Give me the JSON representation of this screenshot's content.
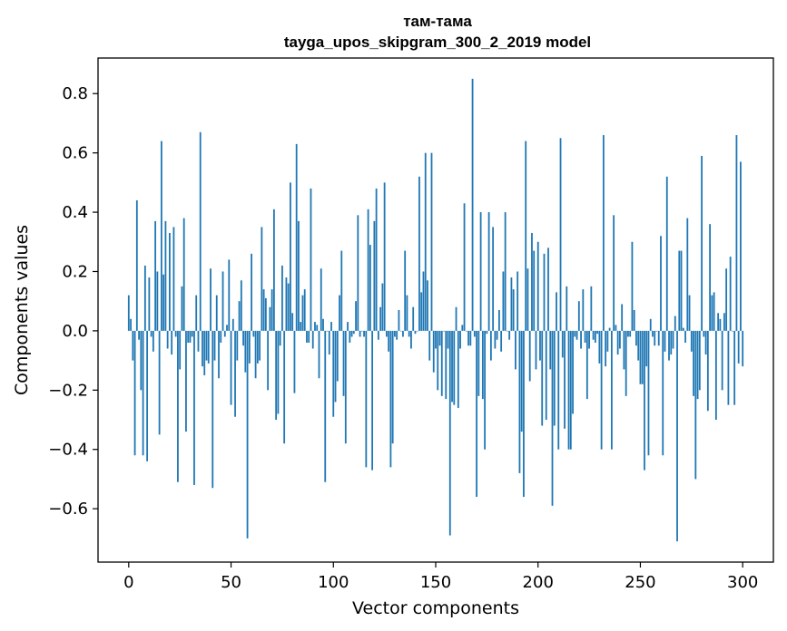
{
  "chart_data": {
    "type": "bar",
    "title_line1": "там-тама",
    "title_line2": "tayga_upos_skipgram_300_2_2019 model",
    "xlabel": "Vector components",
    "ylabel": "Components values",
    "xlim": [
      -15,
      315
    ],
    "ylim": [
      -0.78,
      0.92
    ],
    "x_ticks": [
      0,
      50,
      100,
      150,
      200,
      250,
      300
    ],
    "x_tick_labels": [
      "0",
      "50",
      "100",
      "150",
      "200",
      "250",
      "300"
    ],
    "y_ticks": [
      -0.6,
      -0.4,
      -0.2,
      0.0,
      0.2,
      0.4,
      0.6,
      0.8
    ],
    "y_tick_labels": [
      "−0.6",
      "−0.4",
      "−0.2",
      "0.0",
      "0.2",
      "0.4",
      "0.6",
      "0.8"
    ],
    "bar_color": "#1f77b4",
    "values": [
      0.12,
      0.04,
      -0.1,
      -0.42,
      0.44,
      -0.03,
      -0.2,
      -0.42,
      0.22,
      -0.44,
      0.18,
      -0.02,
      -0.07,
      0.37,
      0.2,
      -0.35,
      0.64,
      0.19,
      0.37,
      -0.06,
      0.33,
      -0.08,
      0.35,
      -0.02,
      -0.51,
      -0.13,
      0.15,
      0.38,
      -0.34,
      -0.04,
      -0.04,
      -0.02,
      -0.52,
      0.12,
      -0.07,
      0.67,
      -0.12,
      -0.15,
      -0.1,
      -0.11,
      0.21,
      -0.53,
      -0.1,
      0.12,
      -0.16,
      -0.04,
      0.2,
      -0.02,
      0.02,
      0.24,
      -0.25,
      0.04,
      -0.29,
      -0.1,
      0.1,
      0.17,
      -0.05,
      -0.14,
      -0.7,
      -0.11,
      0.26,
      -0.02,
      -0.16,
      -0.11,
      -0.1,
      0.35,
      0.14,
      0.11,
      -0.2,
      0.08,
      0.14,
      0.41,
      -0.3,
      -0.28,
      -0.05,
      0.22,
      -0.38,
      0.18,
      0.16,
      0.5,
      0.06,
      -0.21,
      0.63,
      0.37,
      0.03,
      0.12,
      0.14,
      -0.04,
      -0.04,
      0.48,
      -0.06,
      0.03,
      0.02,
      -0.16,
      0.21,
      0.04,
      -0.51,
      0.0,
      -0.08,
      0.03,
      -0.29,
      -0.24,
      -0.17,
      0.12,
      0.27,
      -0.22,
      -0.38,
      0.03,
      -0.04,
      -0.02,
      -0.01,
      0.1,
      0.39,
      -0.02,
      0.0,
      -0.02,
      -0.46,
      0.41,
      0.29,
      -0.47,
      0.37,
      0.48,
      -0.03,
      0.08,
      0.16,
      0.5,
      -0.02,
      -0.07,
      -0.46,
      -0.38,
      -0.02,
      -0.03,
      0.07,
      0.0,
      -0.02,
      0.27,
      0.12,
      -0.02,
      -0.06,
      0.08,
      -0.01,
      0.0,
      0.52,
      0.13,
      0.2,
      0.6,
      0.17,
      -0.1,
      0.6,
      -0.14,
      -0.06,
      -0.2,
      -0.05,
      -0.22,
      0.0,
      -0.23,
      -0.06,
      -0.69,
      -0.24,
      -0.25,
      0.08,
      -0.26,
      -0.06,
      0.02,
      0.43,
      0.0,
      -0.05,
      -0.05,
      0.85,
      -0.02,
      -0.56,
      -0.22,
      0.4,
      -0.23,
      -0.4,
      -0.01,
      0.4,
      -0.1,
      0.35,
      -0.06,
      -0.03,
      0.07,
      -0.07,
      0.2,
      0.4,
      0.0,
      -0.03,
      0.18,
      0.14,
      -0.13,
      0.2,
      -0.48,
      -0.34,
      -0.56,
      0.64,
      0.21,
      -0.17,
      0.33,
      0.27,
      -0.13,
      0.3,
      -0.1,
      -0.32,
      0.26,
      -0.3,
      0.28,
      -0.13,
      -0.59,
      -0.32,
      0.13,
      -0.4,
      0.65,
      -0.09,
      -0.33,
      0.15,
      -0.4,
      -0.4,
      -0.28,
      -0.02,
      -0.03,
      0.1,
      -0.06,
      0.14,
      -0.04,
      -0.23,
      -0.06,
      0.15,
      -0.03,
      -0.04,
      -0.01,
      -0.11,
      -0.4,
      0.66,
      -0.12,
      -0.07,
      0.01,
      -0.4,
      0.39,
      0.02,
      -0.08,
      -0.06,
      0.09,
      -0.13,
      -0.22,
      -0.02,
      -0.02,
      0.3,
      0.07,
      -0.05,
      -0.1,
      -0.18,
      -0.18,
      -0.47,
      -0.12,
      -0.42,
      0.04,
      -0.02,
      -0.05,
      0.0,
      -0.05,
      0.32,
      -0.42,
      -0.07,
      0.52,
      -0.1,
      -0.08,
      -0.06,
      0.05,
      -0.71,
      0.27,
      0.27,
      0.01,
      -0.04,
      0.38,
      0.12,
      -0.07,
      -0.22,
      -0.5,
      -0.23,
      -0.2,
      0.59,
      -0.02,
      -0.08,
      -0.27,
      0.36,
      0.12,
      0.13,
      -0.3,
      0.06,
      0.04,
      -0.2,
      0.06,
      0.21,
      -0.25,
      0.25,
      0.0,
      -0.25,
      0.66,
      -0.11,
      0.57,
      -0.12
    ]
  }
}
